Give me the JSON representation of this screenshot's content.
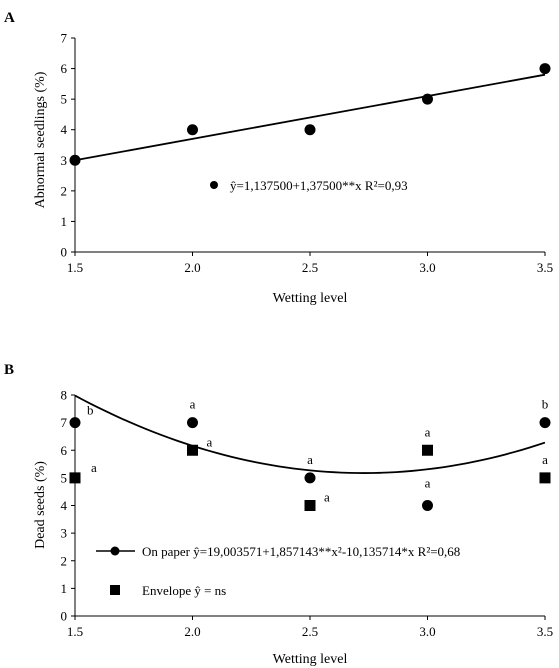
{
  "chart_data": [
    {
      "panel_label": "A",
      "type": "scatter",
      "xlabel": "Wetting level",
      "ylabel": "Abnormal seedlings (%)",
      "xlim": [
        1.5,
        3.5
      ],
      "ylim": [
        0,
        7
      ],
      "x_ticks": [
        "1.5",
        "2.0",
        "2.5",
        "3.0",
        "3.5"
      ],
      "y_ticks": [
        "0",
        "1",
        "2",
        "3",
        "4",
        "5",
        "6",
        "7"
      ],
      "series": [
        {
          "marker": "circle",
          "x": [
            1.5,
            2.0,
            2.5,
            3.0,
            3.5
          ],
          "y": [
            3,
            4,
            4,
            5,
            6
          ],
          "fit": {
            "type": "linear",
            "from": [
              1.5,
              3.0
            ],
            "to": [
              3.5,
              5.8
            ]
          },
          "legend": "ŷ=1,137500+1,37500**x  R²=0,93"
        }
      ],
      "grid": false
    },
    {
      "panel_label": "B",
      "type": "scatter",
      "xlabel": "Wetting level",
      "ylabel": "Dead seeds (%)",
      "xlim": [
        1.5,
        3.5
      ],
      "ylim": [
        0,
        8
      ],
      "x_ticks": [
        "1.5",
        "2.0",
        "2.5",
        "3.0",
        "3.5"
      ],
      "y_ticks": [
        "0",
        "1",
        "2",
        "3",
        "4",
        "5",
        "6",
        "7",
        "8"
      ],
      "series": [
        {
          "marker": "circle",
          "x": [
            1.5,
            2.0,
            2.5,
            3.0,
            3.5
          ],
          "y": [
            7,
            7,
            5,
            4,
            7
          ],
          "letters": [
            "b",
            "a",
            "a",
            "a",
            "b"
          ],
          "fit": {
            "type": "quadratic",
            "a": 1.857143,
            "b": -10.135714,
            "c": 19.003571
          },
          "legend": "On paper ŷ=19,003571+1,857143**x²-10,135714*x  R²=0,68"
        },
        {
          "marker": "square",
          "x": [
            1.5,
            2.0,
            2.5,
            3.0,
            3.5
          ],
          "y": [
            5,
            6,
            4,
            6,
            5
          ],
          "letters": [
            "a",
            "a",
            "a",
            "a",
            "a"
          ],
          "legend": "Envelope ŷ = ns"
        }
      ],
      "grid": false
    }
  ]
}
